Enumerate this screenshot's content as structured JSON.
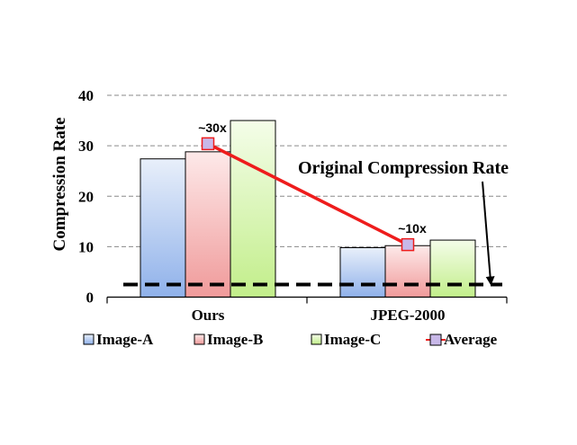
{
  "chart_data": {
    "type": "bar",
    "ylabel": "Compression Rate",
    "ylim": [
      0,
      40
    ],
    "yticks": [
      "0",
      "10",
      "20",
      "30",
      "40"
    ],
    "grid": true,
    "categories": [
      "Ours",
      "JPEG-2000"
    ],
    "series": [
      {
        "name": "Image-A",
        "values": [
          27.4,
          9.8
        ],
        "color_top": "#e8effa",
        "color_bottom": "#8fb1ea"
      },
      {
        "name": "Image-B",
        "values": [
          28.8,
          10.2
        ],
        "color_top": "#fde9e9",
        "color_bottom": "#f09a9a"
      },
      {
        "name": "Image-C",
        "values": [
          35.0,
          11.3
        ],
        "color_top": "#f4fde9",
        "color_bottom": "#c2ee8a"
      }
    ],
    "average": {
      "name": "Average",
      "values": [
        30.4,
        10.4
      ],
      "line_color": "#ee1c1c",
      "marker_color": "#c8b8e8"
    },
    "annotations": [
      {
        "text": "~30x",
        "category": 0
      },
      {
        "text": "~10x",
        "category": 1
      }
    ],
    "reference": {
      "label": "Original Compression Rate",
      "value": 2.5
    },
    "legend_position": "bottom"
  }
}
